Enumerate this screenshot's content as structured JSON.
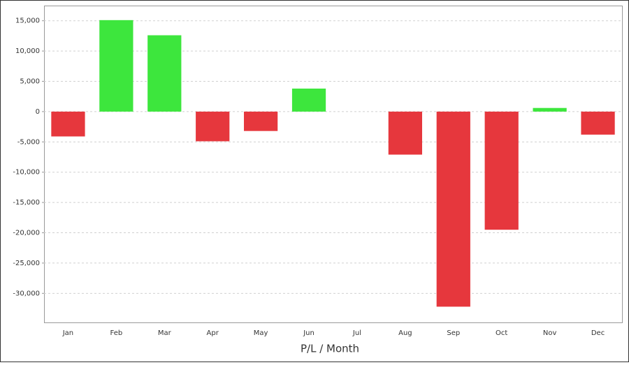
{
  "chart_data": {
    "type": "bar",
    "x_label": "P/L / Month",
    "categories": [
      "Jan",
      "Feb",
      "Mar",
      "Apr",
      "May",
      "Jun",
      "Jul",
      "Aug",
      "Sep",
      "Oct",
      "Nov",
      "Dec"
    ],
    "values": [
      -4100,
      15100,
      12600,
      -4900,
      -3200,
      3800,
      0,
      -7100,
      -32200,
      -19500,
      600,
      -3800
    ],
    "positive_color": "#3de63d",
    "negative_color": "#e6373d",
    "ylim": [
      -34800,
      17500
    ],
    "yticks": [
      {
        "value": 15000,
        "label": "15,000"
      },
      {
        "value": 10000,
        "label": "10,000"
      },
      {
        "value": 5000,
        "label": "5,000"
      },
      0,
      {
        "value": -5000,
        "label": "-5,000"
      },
      {
        "value": -10000,
        "label": "-10,000"
      },
      {
        "value": -15000,
        "label": "-15,000"
      },
      {
        "value": -20000,
        "label": "-20,000"
      },
      {
        "value": -25000,
        "label": "-25,000"
      },
      {
        "value": -30000,
        "label": "-30,000"
      }
    ],
    "grid": true
  }
}
